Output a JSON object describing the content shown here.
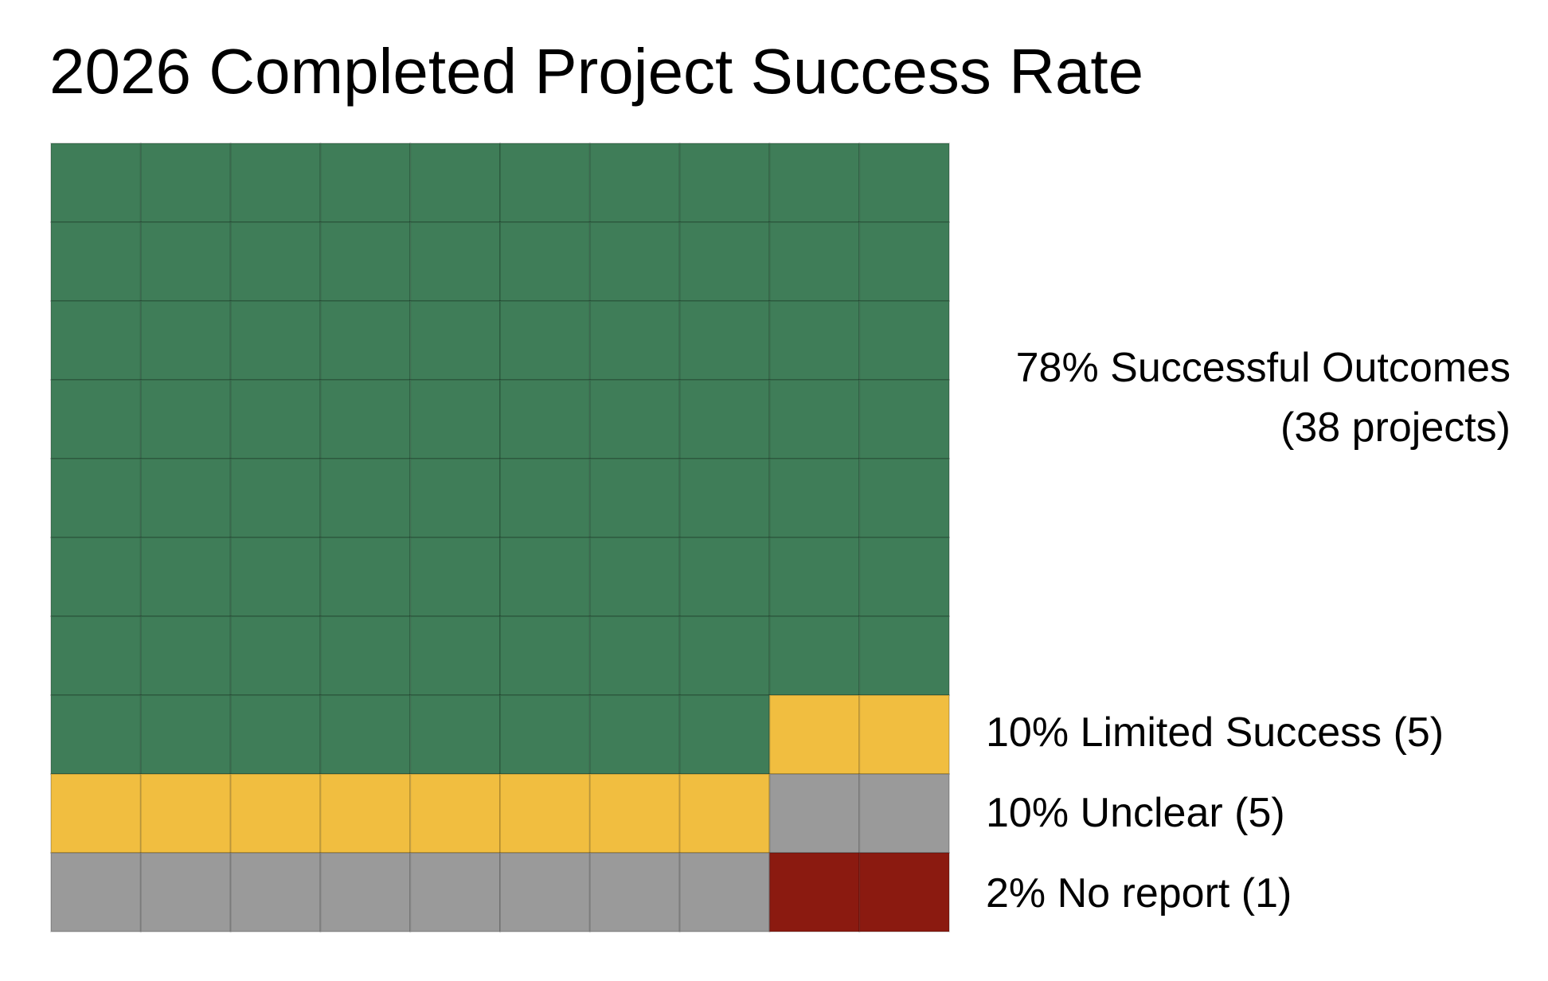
{
  "chart_data": {
    "type": "waffle",
    "title": "2026 Completed Project Success Rate",
    "grid": {
      "rows": 10,
      "cols": 10,
      "fill_order": "row-major-from-top"
    },
    "categories": [
      "Successful Outcomes",
      "Limited Success",
      "Unclear",
      "No report"
    ],
    "percentages": [
      78,
      10,
      10,
      2
    ],
    "counts": [
      38,
      5,
      5,
      1
    ],
    "colors": [
      "#3F7D58",
      "#F1BE40",
      "#9A9A9A",
      "#8B1A10"
    ],
    "cell_border_color": "#00000026",
    "labels": [
      {
        "lines": [
          "78% Successful Outcomes",
          "(38 projects)"
        ]
      },
      {
        "lines": [
          "10% Limited Success (5)"
        ]
      },
      {
        "lines": [
          "10% Unclear (5)"
        ]
      },
      {
        "lines": [
          "2% No report (1)"
        ]
      }
    ]
  }
}
